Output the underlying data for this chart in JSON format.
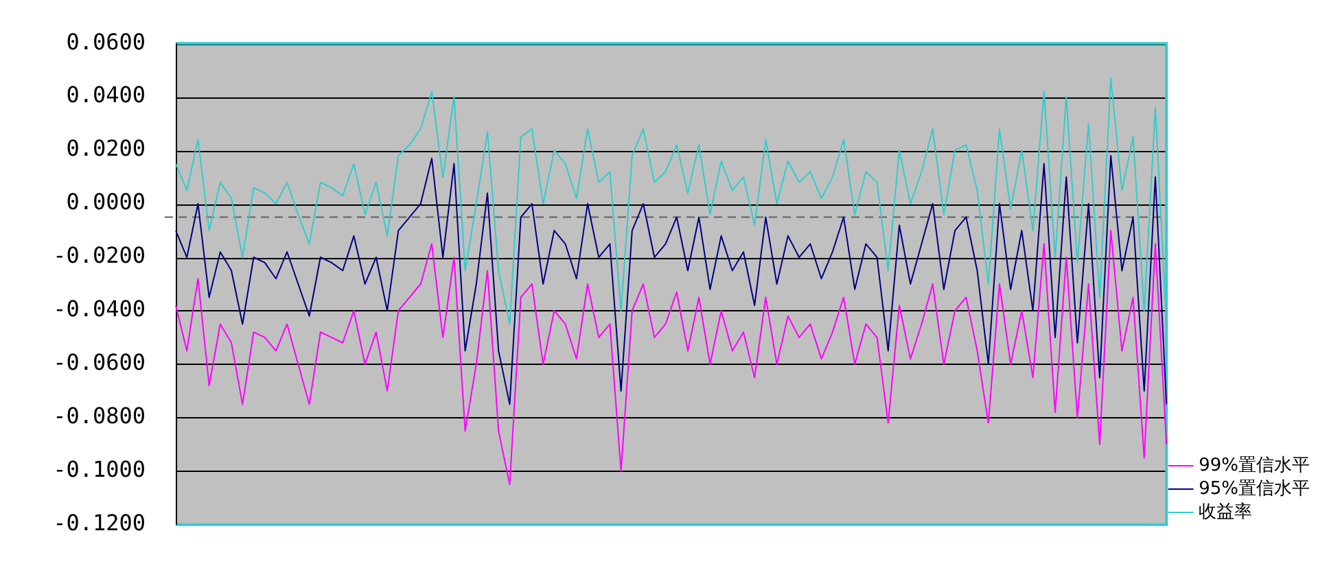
{
  "chart_data": {
    "type": "line",
    "categories": [
      null,
      null,
      null,
      null,
      null,
      null,
      null,
      null,
      null,
      null,
      null,
      null,
      null,
      null,
      null,
      null,
      null,
      null,
      null,
      null,
      null,
      null,
      null,
      null,
      null,
      null,
      null,
      null,
      null,
      null,
      null,
      null,
      null,
      null,
      null,
      null,
      null,
      null,
      null,
      null,
      null,
      null,
      null,
      null,
      null,
      null,
      null,
      null,
      null,
      null,
      null,
      null,
      null,
      null,
      null,
      null,
      null,
      null,
      null,
      null,
      null,
      null,
      null,
      null,
      null,
      null,
      null,
      null,
      null,
      null,
      null,
      null,
      null,
      null,
      null,
      null,
      null,
      null,
      null,
      null,
      null,
      null,
      null,
      null,
      null,
      null,
      null,
      null,
      null,
      null
    ],
    "series": [
      {
        "name": "99%置信水平",
        "color": "#ff00ff",
        "values": [
          -0.038,
          -0.055,
          -0.028,
          -0.068,
          -0.045,
          -0.052,
          -0.075,
          -0.048,
          -0.05,
          -0.055,
          -0.045,
          -0.06,
          -0.075,
          -0.048,
          -0.05,
          -0.052,
          -0.04,
          -0.06,
          -0.048,
          -0.07,
          -0.04,
          -0.035,
          -0.03,
          -0.015,
          -0.05,
          -0.02,
          -0.085,
          -0.06,
          -0.025,
          -0.085,
          -0.105,
          -0.035,
          -0.03,
          -0.06,
          -0.04,
          -0.045,
          -0.058,
          -0.03,
          -0.05,
          -0.045,
          -0.1,
          -0.04,
          -0.03,
          -0.05,
          -0.045,
          -0.033,
          -0.055,
          -0.035,
          -0.06,
          -0.04,
          -0.055,
          -0.048,
          -0.065,
          -0.035,
          -0.06,
          -0.042,
          -0.05,
          -0.045,
          -0.058,
          -0.048,
          -0.035,
          -0.06,
          -0.045,
          -0.05,
          -0.082,
          -0.038,
          -0.058,
          -0.045,
          -0.03,
          -0.06,
          -0.04,
          -0.035,
          -0.055,
          -0.082,
          -0.03,
          -0.06,
          -0.04,
          -0.065,
          -0.015,
          -0.078,
          -0.02,
          -0.08,
          -0.03,
          -0.09,
          -0.01,
          -0.055,
          -0.035,
          -0.095,
          -0.015,
          -0.09
        ]
      },
      {
        "name": "95%置信水平",
        "color": "#000080",
        "values": [
          -0.01,
          -0.02,
          0.0,
          -0.035,
          -0.018,
          -0.025,
          -0.045,
          -0.02,
          -0.022,
          -0.028,
          -0.018,
          -0.03,
          -0.042,
          -0.02,
          -0.022,
          -0.025,
          -0.012,
          -0.03,
          -0.02,
          -0.04,
          -0.01,
          -0.005,
          0.0,
          0.017,
          -0.02,
          0.015,
          -0.055,
          -0.03,
          0.004,
          -0.055,
          -0.075,
          -0.005,
          0.0,
          -0.03,
          -0.01,
          -0.015,
          -0.028,
          0.0,
          -0.02,
          -0.015,
          -0.07,
          -0.01,
          0.0,
          -0.02,
          -0.015,
          -0.005,
          -0.025,
          -0.005,
          -0.032,
          -0.012,
          -0.025,
          -0.018,
          -0.038,
          -0.005,
          -0.03,
          -0.012,
          -0.02,
          -0.015,
          -0.028,
          -0.018,
          -0.005,
          -0.032,
          -0.015,
          -0.02,
          -0.055,
          -0.008,
          -0.03,
          -0.015,
          0.0,
          -0.032,
          -0.01,
          -0.005,
          -0.025,
          -0.06,
          0.0,
          -0.032,
          -0.01,
          -0.04,
          0.015,
          -0.05,
          0.01,
          -0.052,
          0.0,
          -0.065,
          0.018,
          -0.025,
          -0.005,
          -0.07,
          0.01,
          -0.075
        ]
      },
      {
        "name": "收益率",
        "color": "#33cccc",
        "values": [
          0.015,
          0.005,
          0.024,
          -0.01,
          0.008,
          0.002,
          -0.02,
          0.006,
          0.004,
          0.0,
          0.008,
          -0.004,
          -0.015,
          0.008,
          0.006,
          0.003,
          0.015,
          -0.004,
          0.008,
          -0.012,
          0.018,
          0.022,
          0.028,
          0.042,
          0.01,
          0.04,
          -0.025,
          0.0,
          0.027,
          -0.025,
          -0.045,
          0.025,
          0.028,
          0.0,
          0.02,
          0.015,
          0.002,
          0.028,
          0.008,
          0.012,
          -0.04,
          0.018,
          0.028,
          0.008,
          0.012,
          0.022,
          0.004,
          0.022,
          -0.004,
          0.016,
          0.005,
          0.01,
          -0.008,
          0.024,
          0.0,
          0.016,
          0.008,
          0.012,
          0.002,
          0.01,
          0.024,
          -0.004,
          0.012,
          0.008,
          -0.025,
          0.02,
          0.0,
          0.012,
          0.028,
          -0.004,
          0.02,
          0.022,
          0.005,
          -0.03,
          0.028,
          -0.002,
          0.02,
          -0.01,
          0.042,
          -0.02,
          0.04,
          -0.022,
          0.03,
          -0.035,
          0.047,
          0.005,
          0.025,
          -0.04,
          0.036,
          -0.045
        ]
      }
    ],
    "ylim": [
      -0.12,
      0.06
    ],
    "yticks": [
      {
        "value": -0.12,
        "label": "-0.1200"
      },
      {
        "value": -0.1,
        "label": "-0.1000"
      },
      {
        "value": -0.08,
        "label": "-0.0800"
      },
      {
        "value": -0.06,
        "label": "-0.0600"
      },
      {
        "value": -0.04,
        "label": "-0.0400"
      },
      {
        "value": -0.02,
        "label": "-0.0200"
      },
      {
        "value": 0,
        "label": "0.0000"
      },
      {
        "value": 0.02,
        "label": "0.0200"
      },
      {
        "value": 0.04,
        "label": "0.0400"
      },
      {
        "value": 0.06,
        "label": "0.0600"
      }
    ],
    "ref_lines": [
      {
        "axis": "y",
        "value": -0.005,
        "color": "#606060",
        "line_style": "dashed"
      }
    ],
    "grid": "y",
    "legend": "bottom right",
    "marker": "none",
    "line_style": "solid"
  }
}
